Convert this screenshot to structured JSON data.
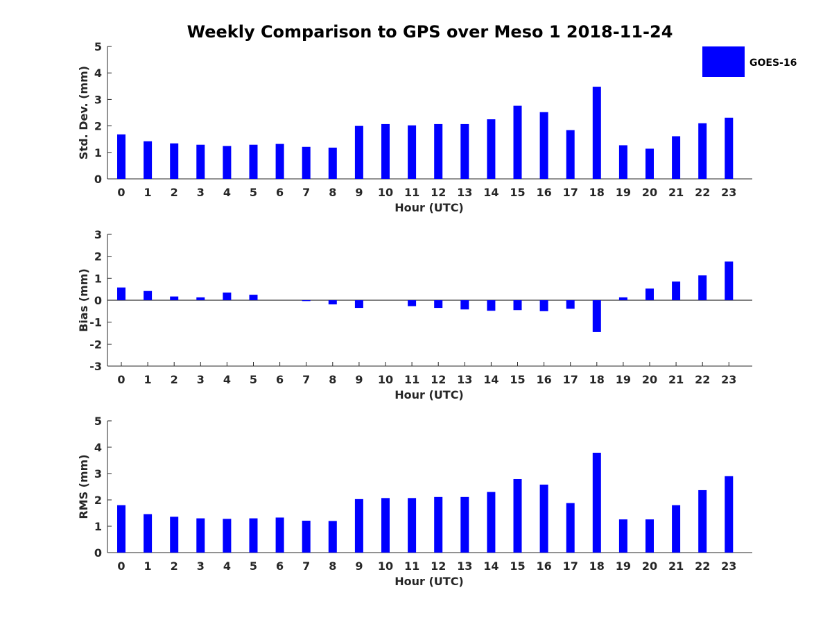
{
  "chart_data": {
    "type": "bar",
    "title": "Weekly Comparison to GPS over Meso 1 2018-11-24",
    "legend": {
      "label": "GOES-16",
      "color": "#0000ff",
      "placement": "top-right"
    },
    "categories": [
      "0",
      "1",
      "2",
      "3",
      "4",
      "5",
      "6",
      "7",
      "8",
      "9",
      "10",
      "11",
      "12",
      "13",
      "14",
      "15",
      "16",
      "17",
      "18",
      "19",
      "20",
      "21",
      "22",
      "23"
    ],
    "panels": [
      {
        "id": "std",
        "xlabel": "Hour (UTC)",
        "ylabel": "Std. Dev. (mm)",
        "ylim": [
          0,
          5
        ],
        "yticks": [
          "0",
          "1",
          "2",
          "3",
          "4",
          "5"
        ],
        "values": [
          1.68,
          1.42,
          1.34,
          1.29,
          1.24,
          1.29,
          1.32,
          1.21,
          1.18,
          2.0,
          2.07,
          2.02,
          2.07,
          2.07,
          2.25,
          2.76,
          2.52,
          1.84,
          3.48,
          1.27,
          1.14,
          1.61,
          2.1,
          2.31
        ]
      },
      {
        "id": "bias",
        "xlabel": "Hour (UTC)",
        "ylabel": "Bias (mm)",
        "ylim": [
          -3,
          3
        ],
        "yticks": [
          "-3",
          "-2",
          "-1",
          "0",
          "1",
          "2",
          "3"
        ],
        "zero_line": true,
        "values": [
          0.58,
          0.42,
          0.17,
          0.13,
          0.35,
          0.25,
          0.0,
          -0.04,
          -0.19,
          -0.35,
          0.0,
          -0.27,
          -0.35,
          -0.42,
          -0.48,
          -0.45,
          -0.5,
          -0.39,
          -1.45,
          0.13,
          0.53,
          0.85,
          1.13,
          1.76
        ]
      },
      {
        "id": "rms",
        "xlabel": "Hour (UTC)",
        "ylabel": "RMS (mm)",
        "ylim": [
          0,
          5
        ],
        "yticks": [
          "0",
          "1",
          "2",
          "3",
          "4",
          "5"
        ],
        "values": [
          1.8,
          1.46,
          1.36,
          1.3,
          1.28,
          1.3,
          1.33,
          1.21,
          1.2,
          2.03,
          2.07,
          2.07,
          2.11,
          2.11,
          2.3,
          2.79,
          2.58,
          1.88,
          3.79,
          1.26,
          1.26,
          1.8,
          2.37,
          2.9
        ]
      }
    ]
  }
}
